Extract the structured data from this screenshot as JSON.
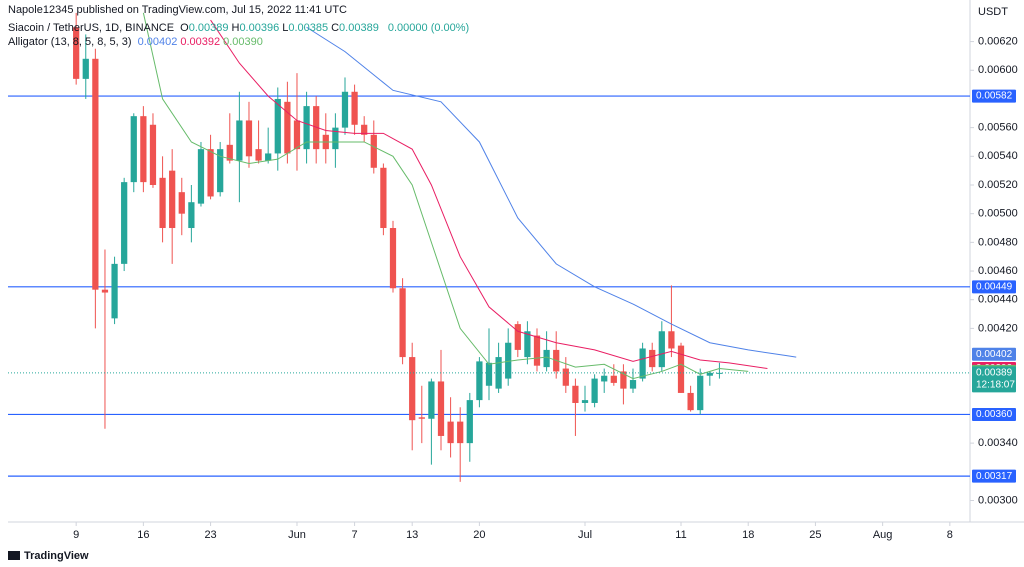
{
  "header": {
    "publisher": "Napole12345 published on TradingView.com, Jul 15, 2022 11:41 UTC",
    "symbol": "Siacoin / TetherUS, 1D, BINANCE",
    "ohlc": [
      {
        "key": "O",
        "value": "0.00389"
      },
      {
        "key": "H",
        "value": "0.00396"
      },
      {
        "key": "L",
        "value": "0.00385"
      },
      {
        "key": "C",
        "value": "0.00389"
      }
    ],
    "change": "0.00000 (0.00%)",
    "indicator": "Alligator (13, 8, 5, 8, 5, 3)",
    "currency": "USDT",
    "brand": "TradingView"
  },
  "chart_data": {
    "type": "candlestick",
    "up_color": "#26a69a",
    "down_color": "#ef5350",
    "xlim": [
      -7.1,
      93.1
    ],
    "ylim": [
      0.00285,
      0.00649
    ],
    "xticks": [
      {
        "value": 0,
        "label": "9"
      },
      {
        "value": 7,
        "label": "16"
      },
      {
        "value": 14,
        "label": "23"
      },
      {
        "value": 23,
        "label": "Jun"
      },
      {
        "value": 29,
        "label": "7"
      },
      {
        "value": 35,
        "label": "13"
      },
      {
        "value": 42,
        "label": "20"
      },
      {
        "value": 53,
        "label": "Jul"
      },
      {
        "value": 63,
        "label": "11"
      },
      {
        "value": 70,
        "label": "18"
      },
      {
        "value": 77,
        "label": "25"
      },
      {
        "value": 84,
        "label": "Aug"
      },
      {
        "value": 91,
        "label": "8"
      }
    ],
    "yticks": [
      {
        "value": 0.003,
        "label": "0.00300"
      },
      {
        "value": 0.0034,
        "label": "0.00340"
      },
      {
        "value": 0.0042,
        "label": "0.00420"
      },
      {
        "value": 0.0044,
        "label": "0.00440"
      },
      {
        "value": 0.0046,
        "label": "0.00460"
      },
      {
        "value": 0.0048,
        "label": "0.00480"
      },
      {
        "value": 0.005,
        "label": "0.00500"
      },
      {
        "value": 0.0052,
        "label": "0.00520"
      },
      {
        "value": 0.0054,
        "label": "0.00540"
      },
      {
        "value": 0.0056,
        "label": "0.00560"
      },
      {
        "value": 0.006,
        "label": "0.00600"
      },
      {
        "value": 0.0062,
        "label": "0.00620"
      }
    ],
    "grid": false,
    "open": [
      0.0063,
      0.00594,
      0.00608,
      0.00447,
      0.00427,
      0.00465,
      0.00522,
      0.00568,
      0.00562,
      0.00525,
      0.0053,
      0.00515,
      0.0049,
      0.00507,
      0.00545,
      0.00515,
      0.00548,
      0.00537,
      0.00565,
      0.00545,
      0.00537,
      0.00542,
      0.00578,
      0.00565,
      0.00545,
      0.00575,
      0.00555,
      0.00545,
      0.0056,
      0.00585,
      0.00562,
      0.00555,
      0.00532,
      0.0049,
      0.00448,
      0.004,
      0.00358,
      0.00357,
      0.00383,
      0.00355,
      0.00355,
      0.0034,
      0.0037,
      0.0038,
      0.00378,
      0.00385,
      0.00423,
      0.004,
      0.00415,
      0.00393,
      0.00405,
      0.00392,
      0.0038,
      0.00368,
      0.00368,
      0.00383,
      0.00387,
      0.0039,
      0.00378,
      0.00385,
      0.00405,
      0.00393,
      0.00418,
      0.00408,
      0.00375,
      0.00363,
      0.00387,
      0.00389
    ],
    "high": [
      0.0064,
      0.00625,
      0.00615,
      0.00475,
      0.0047,
      0.00525,
      0.0057,
      0.00575,
      0.0057,
      0.0054,
      0.00545,
      0.00525,
      0.0052,
      0.0055,
      0.00555,
      0.0055,
      0.0057,
      0.00585,
      0.00578,
      0.00565,
      0.0056,
      0.00588,
      0.00592,
      0.00598,
      0.00585,
      0.00582,
      0.0057,
      0.0057,
      0.00595,
      0.0059,
      0.00568,
      0.00565,
      0.00535,
      0.00495,
      0.00455,
      0.0041,
      0.0038,
      0.00385,
      0.00405,
      0.00372,
      0.00365,
      0.00375,
      0.004,
      0.0042,
      0.0041,
      0.0042,
      0.00425,
      0.00425,
      0.0042,
      0.00418,
      0.00418,
      0.004,
      0.00385,
      0.0038,
      0.00388,
      0.00392,
      0.00395,
      0.00395,
      0.00392,
      0.0041,
      0.0041,
      0.00425,
      0.0045,
      0.0041,
      0.0038,
      0.00392,
      0.0039,
      0.00396
    ],
    "low": [
      0.0059,
      0.0058,
      0.0042,
      0.0035,
      0.00423,
      0.0046,
      0.00515,
      0.00515,
      0.00518,
      0.0048,
      0.00465,
      0.00485,
      0.0048,
      0.00505,
      0.0051,
      0.00512,
      0.00535,
      0.00508,
      0.00532,
      0.00535,
      0.00535,
      0.0053,
      0.00535,
      0.0053,
      0.00535,
      0.00535,
      0.00535,
      0.00532,
      0.00555,
      0.00555,
      0.0055,
      0.00528,
      0.00485,
      0.00445,
      0.00395,
      0.00335,
      0.0034,
      0.00325,
      0.00335,
      0.0033,
      0.00313,
      0.00327,
      0.00365,
      0.0037,
      0.00375,
      0.0038,
      0.004,
      0.00395,
      0.0039,
      0.0039,
      0.00385,
      0.00375,
      0.00345,
      0.00362,
      0.00365,
      0.00375,
      0.0038,
      0.00367,
      0.00375,
      0.00383,
      0.0039,
      0.0039,
      0.004,
      0.00375,
      0.00362,
      0.0036,
      0.0038,
      0.00385
    ],
    "close": [
      0.00594,
      0.00608,
      0.00447,
      0.00445,
      0.00465,
      0.00522,
      0.00568,
      0.00522,
      0.0052,
      0.0049,
      0.0049,
      0.005,
      0.00508,
      0.00545,
      0.00512,
      0.00545,
      0.00537,
      0.00565,
      0.0054,
      0.00537,
      0.00542,
      0.0058,
      0.00542,
      0.00545,
      0.00575,
      0.00545,
      0.00545,
      0.0056,
      0.00585,
      0.00562,
      0.00555,
      0.00532,
      0.0049,
      0.00448,
      0.004,
      0.00356,
      0.00357,
      0.00383,
      0.00345,
      0.0034,
      0.0034,
      0.0037,
      0.00397,
      0.00396,
      0.004,
      0.0041,
      0.00405,
      0.00418,
      0.00394,
      0.00405,
      0.0039,
      0.0038,
      0.00368,
      0.0037,
      0.00385,
      0.00387,
      0.00382,
      0.00378,
      0.00384,
      0.00406,
      0.00393,
      0.00418,
      0.00406,
      0.00375,
      0.00363,
      0.00387,
      0.00389,
      0.00389
    ],
    "series": [
      {
        "name": "jaw",
        "color": "#4f82e8",
        "value_label": "0.00402",
        "last": 0.00402,
        "x": [
          24,
          28,
          33,
          38,
          42,
          46,
          50,
          54,
          58,
          62,
          66,
          70,
          74,
          75
        ],
        "values": [
          0.0063,
          0.00613,
          0.00586,
          0.00578,
          0.0055,
          0.00497,
          0.00465,
          0.00449,
          0.00437,
          0.00423,
          0.0041,
          0.00405,
          0.00401,
          0.004
        ]
      },
      {
        "name": "teeth",
        "color": "#e91e63",
        "value_label": "0.00392",
        "last": 0.00392,
        "x": [
          14,
          17,
          20,
          23,
          26,
          29,
          32,
          35,
          37,
          40,
          43,
          46,
          50,
          54,
          58,
          62,
          65,
          68,
          72
        ],
        "values": [
          0.00635,
          0.00605,
          0.00582,
          0.00565,
          0.00558,
          0.00556,
          0.00556,
          0.00545,
          0.0052,
          0.0047,
          0.00435,
          0.00418,
          0.0041,
          0.00405,
          0.00397,
          0.00404,
          0.00398,
          0.00396,
          0.00392
        ]
      },
      {
        "name": "lips",
        "color": "#66bb6a",
        "value_label": "0.00390",
        "last": 0.0039,
        "x": [
          7,
          9,
          12,
          15,
          18,
          21,
          24,
          27,
          30,
          33,
          35,
          37,
          40,
          43,
          46,
          49,
          52,
          55,
          58,
          61,
          63,
          65,
          67,
          70
        ],
        "values": [
          0.0064,
          0.0058,
          0.0055,
          0.0054,
          0.00535,
          0.00538,
          0.0055,
          0.0055,
          0.0055,
          0.0054,
          0.0052,
          0.0048,
          0.0042,
          0.00395,
          0.00398,
          0.004,
          0.00393,
          0.00395,
          0.00385,
          0.0039,
          0.00395,
          0.00388,
          0.00392,
          0.0039
        ]
      }
    ],
    "price_lines": [
      {
        "value": 0.00582,
        "label": "0.00582"
      },
      {
        "value": 0.00449,
        "label": "0.00449"
      },
      {
        "value": 0.0036,
        "label": "0.00360"
      },
      {
        "value": 0.00317,
        "label": "0.00317"
      }
    ],
    "line_color": "#2962ff",
    "current": {
      "value": 0.00389,
      "label": "0.00389",
      "countdown": "12:18:07"
    }
  }
}
